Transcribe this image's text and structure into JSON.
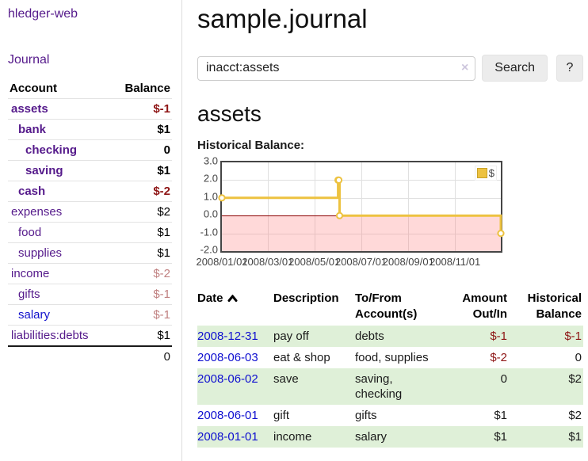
{
  "colors": {
    "link_purple": "#551a8b",
    "link_blue": "#1111cc",
    "negative_dark": "#8e1515",
    "negative_light": "#c08080",
    "row_highlight_green": "#dff0d8",
    "series_gold": "#edc240",
    "zero_line_red": "#8b0000"
  },
  "sidebar": {
    "brand": "hledger-web",
    "nav_journal": "Journal",
    "accounts_table": {
      "col_account": "Account",
      "col_balance": "Balance",
      "rows": [
        {
          "account": "assets",
          "indent": 0,
          "balance": "$-1",
          "in_query": true,
          "negative": true,
          "unvisited": false
        },
        {
          "account": "bank",
          "indent": 1,
          "balance": "$1",
          "in_query": true,
          "negative": false,
          "unvisited": false
        },
        {
          "account": "checking",
          "indent": 2,
          "balance": "0",
          "in_query": true,
          "negative": false,
          "unvisited": false
        },
        {
          "account": "saving",
          "indent": 2,
          "balance": "$1",
          "in_query": true,
          "negative": false,
          "unvisited": false
        },
        {
          "account": "cash",
          "indent": 1,
          "balance": "$-2",
          "in_query": true,
          "negative": true,
          "unvisited": false
        },
        {
          "account": "expenses",
          "indent": 0,
          "balance": "$2",
          "in_query": false,
          "negative": false,
          "unvisited": false
        },
        {
          "account": "food",
          "indent": 1,
          "balance": "$1",
          "in_query": false,
          "negative": false,
          "unvisited": false
        },
        {
          "account": "supplies",
          "indent": 1,
          "balance": "$1",
          "in_query": false,
          "negative": false,
          "unvisited": false
        },
        {
          "account": "income",
          "indent": 0,
          "balance": "$-2",
          "in_query": false,
          "negative": true,
          "unvisited": false
        },
        {
          "account": "gifts",
          "indent": 1,
          "balance": "$-1",
          "in_query": false,
          "negative": true,
          "unvisited": false
        },
        {
          "account": "salary",
          "indent": 1,
          "balance": "$-1",
          "in_query": false,
          "negative": true,
          "unvisited": true
        },
        {
          "account": "liabilities:debts",
          "indent": 0,
          "balance": "$1",
          "in_query": false,
          "negative": false,
          "unvisited": false
        }
      ],
      "total": "0"
    }
  },
  "main": {
    "title": "sample.journal",
    "search": {
      "value": "inacct:assets",
      "clear_icon": "×",
      "search_button": "Search",
      "help_button": "?"
    },
    "account_heading": "assets",
    "chart_heading": "Historical Balance:"
  },
  "chart_data": {
    "type": "line",
    "step": true,
    "title": "Historical Balance",
    "legend": [
      {
        "label": "$",
        "color": "#edc240"
      }
    ],
    "legend_position": "top-right",
    "grid": true,
    "x": [
      "2008-01-01",
      "2008-06-01",
      "2008-06-02",
      "2008-06-03",
      "2008-12-31"
    ],
    "series": [
      {
        "name": "$",
        "values": [
          1,
          2,
          2,
          0,
          -1
        ]
      }
    ],
    "xlim": [
      "2008-01-01",
      "2008-12-31"
    ],
    "ylim": [
      -2,
      3
    ],
    "y_ticks": [
      "3.0",
      "2.0",
      "1.0",
      "0.0",
      "-1.0",
      "-2.0"
    ],
    "x_ticks": [
      "2008/01/01",
      "2008/03/01",
      "2008/05/01",
      "2008/07/01",
      "2008/09/01",
      "2008/11/01"
    ],
    "negative_region": {
      "from": 0,
      "to": -2,
      "color": "rgba(255,120,120,0.28)"
    }
  },
  "register": {
    "headers": [
      {
        "label": "Date",
        "sort": "asc"
      },
      {
        "label": "Description"
      },
      {
        "label": "To/From Account(s)"
      },
      {
        "label": "Amount Out/In"
      },
      {
        "label": "Historical Balance"
      }
    ],
    "rows": [
      {
        "date": "2008-12-31",
        "description": "pay off",
        "accounts": "debts",
        "amount": "$-1",
        "balance": "$-1",
        "amount_negative": true,
        "balance_negative": true,
        "highlight": true
      },
      {
        "date": "2008-06-03",
        "description": "eat & shop",
        "accounts": "food, supplies",
        "amount": "$-2",
        "balance": "0",
        "amount_negative": true,
        "balance_negative": false,
        "highlight": false
      },
      {
        "date": "2008-06-02",
        "description": "save",
        "accounts": "saving, checking",
        "amount": "0",
        "balance": "$2",
        "amount_negative": false,
        "balance_negative": false,
        "highlight": true
      },
      {
        "date": "2008-06-01",
        "description": "gift",
        "accounts": "gifts",
        "amount": "$1",
        "balance": "$2",
        "amount_negative": false,
        "balance_negative": false,
        "highlight": false
      },
      {
        "date": "2008-01-01",
        "description": "income",
        "accounts": "salary",
        "amount": "$1",
        "balance": "$1",
        "amount_negative": false,
        "balance_negative": false,
        "highlight": true
      }
    ]
  }
}
